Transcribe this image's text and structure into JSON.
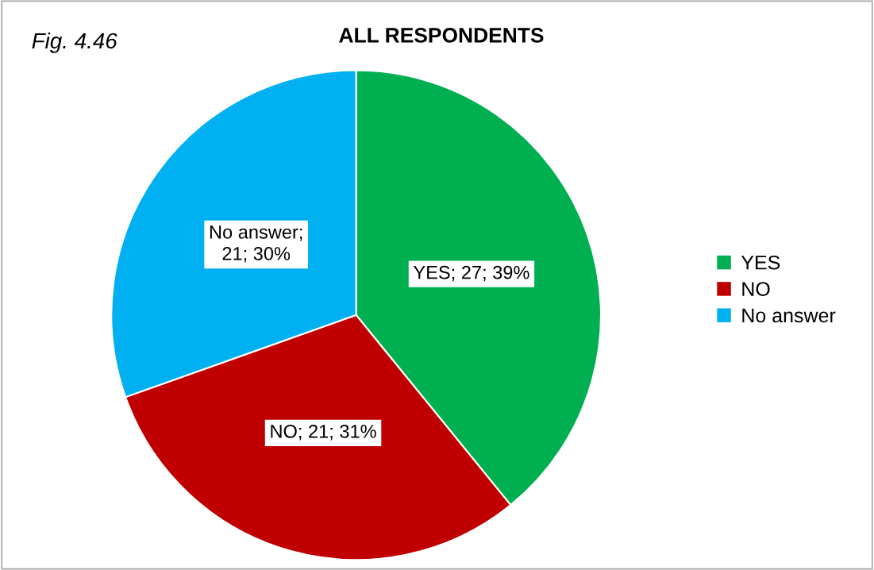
{
  "chart_data": {
    "type": "pie",
    "title": "ALL RESPONDENTS",
    "annotations": [
      "Fig. 4.46"
    ],
    "categories": [
      "YES",
      "NO",
      "No answer"
    ],
    "values": [
      27,
      21,
      21
    ],
    "colors": [
      "#00b050",
      "#c00000",
      "#00b0f0"
    ],
    "value_labels": [
      "YES; 27; 39%",
      "NO; 21; 31%",
      "No answer;\n21; 30%"
    ],
    "legend": "right"
  }
}
